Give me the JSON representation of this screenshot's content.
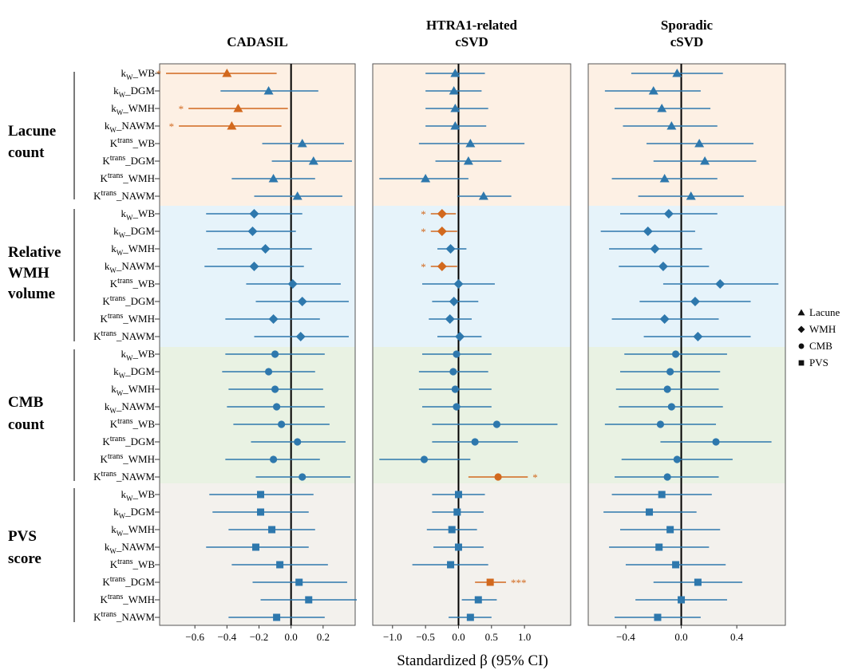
{
  "figure_label": "",
  "x_axis_title": "Standardized β (95% CI)",
  "panel_titles": [
    [
      "CADASIL"
    ],
    [
      "HTRA1-related",
      "cSVD"
    ],
    [
      "Sporadic",
      "cSVD"
    ]
  ],
  "groups": [
    {
      "name": [
        "Lacune",
        "count"
      ],
      "shape": "Lacune",
      "bg": "#fdf0e4"
    },
    {
      "name": [
        "Relative",
        "WMH",
        "volume"
      ],
      "shape": "WMH",
      "bg": "#e6f3fa"
    },
    {
      "name": [
        "CMB",
        "count"
      ],
      "shape": "CMB",
      "bg": "#e9f2e3"
    },
    {
      "name": [
        "PVS",
        "score"
      ],
      "shape": "PVS",
      "bg": "#f3f1ed"
    }
  ],
  "row_labels": [
    {
      "base": "k",
      "sub": "W",
      "sup": "",
      "suffix": "_WB"
    },
    {
      "base": "k",
      "sub": "W",
      "sup": "",
      "suffix": "_DGM"
    },
    {
      "base": "k",
      "sub": "W",
      "sup": "",
      "suffix": "_WMH"
    },
    {
      "base": "k",
      "sub": "W",
      "sup": "",
      "suffix": "_NAWM"
    },
    {
      "base": "K",
      "sub": "",
      "sup": "trans",
      "suffix": "_WB"
    },
    {
      "base": "K",
      "sub": "",
      "sup": "trans",
      "suffix": "_DGM"
    },
    {
      "base": "K",
      "sub": "",
      "sup": "trans",
      "suffix": "_WMH"
    },
    {
      "base": "K",
      "sub": "",
      "sup": "trans",
      "suffix": "_NAWM"
    }
  ],
  "legend": [
    {
      "shape": "Lacune",
      "label": "Lacune"
    },
    {
      "shape": "WMH",
      "label": "WMH"
    },
    {
      "shape": "CMB",
      "label": "CMB"
    },
    {
      "shape": "PVS",
      "label": "PVS"
    }
  ],
  "colors": {
    "normal": "#2e78ad",
    "significant": "#d2691e",
    "zero_line": "#000000",
    "panel_border": "#555555"
  },
  "chart_data": {
    "type": "forest",
    "panels": [
      {
        "title": "CADASIL",
        "xlim": [
          -0.82,
          0.4
        ],
        "ticks": [
          -0.6,
          -0.4,
          -0.2,
          0.0,
          0.2
        ],
        "tick_labels": [
          "−0.6",
          "−0.4",
          "−0.2",
          "0.0",
          "0.2"
        ],
        "rows": [
          {
            "est": -0.4,
            "lo": -0.78,
            "hi": -0.09,
            "sig": "*"
          },
          {
            "est": -0.14,
            "lo": -0.44,
            "hi": 0.17,
            "sig": ""
          },
          {
            "est": -0.33,
            "lo": -0.64,
            "hi": -0.02,
            "sig": "*"
          },
          {
            "est": -0.37,
            "lo": -0.7,
            "hi": -0.06,
            "sig": "*"
          },
          {
            "est": 0.07,
            "lo": -0.18,
            "hi": 0.33,
            "sig": ""
          },
          {
            "est": 0.14,
            "lo": -0.12,
            "hi": 0.38,
            "sig": ""
          },
          {
            "est": -0.11,
            "lo": -0.37,
            "hi": 0.15,
            "sig": ""
          },
          {
            "est": 0.04,
            "lo": -0.23,
            "hi": 0.32,
            "sig": ""
          },
          {
            "est": -0.23,
            "lo": -0.53,
            "hi": 0.07,
            "sig": ""
          },
          {
            "est": -0.24,
            "lo": -0.53,
            "hi": 0.03,
            "sig": ""
          },
          {
            "est": -0.16,
            "lo": -0.46,
            "hi": 0.13,
            "sig": ""
          },
          {
            "est": -0.23,
            "lo": -0.54,
            "hi": 0.08,
            "sig": ""
          },
          {
            "est": 0.01,
            "lo": -0.28,
            "hi": 0.31,
            "sig": ""
          },
          {
            "est": 0.07,
            "lo": -0.22,
            "hi": 0.36,
            "sig": ""
          },
          {
            "est": -0.11,
            "lo": -0.41,
            "hi": 0.18,
            "sig": ""
          },
          {
            "est": 0.06,
            "lo": -0.23,
            "hi": 0.36,
            "sig": ""
          },
          {
            "est": -0.1,
            "lo": -0.41,
            "hi": 0.21,
            "sig": ""
          },
          {
            "est": -0.14,
            "lo": -0.43,
            "hi": 0.15,
            "sig": ""
          },
          {
            "est": -0.1,
            "lo": -0.39,
            "hi": 0.2,
            "sig": ""
          },
          {
            "est": -0.09,
            "lo": -0.4,
            "hi": 0.21,
            "sig": ""
          },
          {
            "est": -0.06,
            "lo": -0.36,
            "hi": 0.24,
            "sig": ""
          },
          {
            "est": 0.04,
            "lo": -0.25,
            "hi": 0.34,
            "sig": ""
          },
          {
            "est": -0.11,
            "lo": -0.41,
            "hi": 0.18,
            "sig": ""
          },
          {
            "est": 0.07,
            "lo": -0.22,
            "hi": 0.37,
            "sig": ""
          },
          {
            "est": -0.19,
            "lo": -0.51,
            "hi": 0.14,
            "sig": ""
          },
          {
            "est": -0.19,
            "lo": -0.49,
            "hi": 0.11,
            "sig": ""
          },
          {
            "est": -0.12,
            "lo": -0.39,
            "hi": 0.15,
            "sig": ""
          },
          {
            "est": -0.22,
            "lo": -0.53,
            "hi": 0.11,
            "sig": ""
          },
          {
            "est": -0.07,
            "lo": -0.37,
            "hi": 0.23,
            "sig": ""
          },
          {
            "est": 0.05,
            "lo": -0.24,
            "hi": 0.35,
            "sig": ""
          },
          {
            "est": 0.11,
            "lo": -0.19,
            "hi": 0.41,
            "sig": ""
          },
          {
            "est": -0.09,
            "lo": -0.39,
            "hi": 0.21,
            "sig": ""
          }
        ]
      },
      {
        "title": "HTRA1-related cSVD",
        "xlim": [
          -1.3,
          1.7
        ],
        "ticks": [
          -1.0,
          -0.5,
          0.0,
          0.5,
          1.0
        ],
        "tick_labels": [
          "−1.0",
          "−0.5",
          "0.0",
          "0.5",
          "1.0"
        ],
        "rows": [
          {
            "est": -0.05,
            "lo": -0.5,
            "hi": 0.4,
            "sig": ""
          },
          {
            "est": -0.07,
            "lo": -0.5,
            "hi": 0.35,
            "sig": ""
          },
          {
            "est": -0.05,
            "lo": -0.5,
            "hi": 0.45,
            "sig": ""
          },
          {
            "est": -0.05,
            "lo": -0.5,
            "hi": 0.42,
            "sig": ""
          },
          {
            "est": 0.18,
            "lo": -0.6,
            "hi": 1.0,
            "sig": ""
          },
          {
            "est": 0.15,
            "lo": -0.35,
            "hi": 0.65,
            "sig": ""
          },
          {
            "est": -0.5,
            "lo": -1.2,
            "hi": 0.15,
            "sig": ""
          },
          {
            "est": 0.38,
            "lo": -0.02,
            "hi": 0.8,
            "sig": ""
          },
          {
            "est": -0.25,
            "lo": -0.42,
            "hi": -0.04,
            "sig": "*"
          },
          {
            "est": -0.25,
            "lo": -0.42,
            "hi": -0.02,
            "sig": "*"
          },
          {
            "est": -0.12,
            "lo": -0.32,
            "hi": 0.12,
            "sig": ""
          },
          {
            "est": -0.25,
            "lo": -0.42,
            "hi": -0.02,
            "sig": "*"
          },
          {
            "est": 0.0,
            "lo": -0.55,
            "hi": 0.55,
            "sig": ""
          },
          {
            "est": -0.07,
            "lo": -0.4,
            "hi": 0.3,
            "sig": ""
          },
          {
            "est": -0.13,
            "lo": -0.45,
            "hi": 0.2,
            "sig": ""
          },
          {
            "est": 0.02,
            "lo": -0.32,
            "hi": 0.35,
            "sig": ""
          },
          {
            "est": -0.03,
            "lo": -0.55,
            "hi": 0.5,
            "sig": ""
          },
          {
            "est": -0.08,
            "lo": -0.6,
            "hi": 0.45,
            "sig": ""
          },
          {
            "est": -0.05,
            "lo": -0.6,
            "hi": 0.5,
            "sig": ""
          },
          {
            "est": -0.03,
            "lo": -0.55,
            "hi": 0.5,
            "sig": ""
          },
          {
            "est": 0.58,
            "lo": -0.4,
            "hi": 1.5,
            "sig": ""
          },
          {
            "est": 0.25,
            "lo": -0.4,
            "hi": 0.9,
            "sig": ""
          },
          {
            "est": -0.52,
            "lo": -1.2,
            "hi": 0.18,
            "sig": ""
          },
          {
            "est": 0.6,
            "lo": 0.15,
            "hi": 1.05,
            "sig": "*"
          },
          {
            "est": 0.0,
            "lo": -0.4,
            "hi": 0.4,
            "sig": ""
          },
          {
            "est": -0.02,
            "lo": -0.4,
            "hi": 0.38,
            "sig": ""
          },
          {
            "est": -0.1,
            "lo": -0.48,
            "hi": 0.28,
            "sig": ""
          },
          {
            "est": 0.0,
            "lo": -0.38,
            "hi": 0.38,
            "sig": ""
          },
          {
            "est": -0.12,
            "lo": -0.7,
            "hi": 0.45,
            "sig": ""
          },
          {
            "est": 0.48,
            "lo": 0.25,
            "hi": 0.72,
            "sig": "***"
          },
          {
            "est": 0.3,
            "lo": 0.05,
            "hi": 0.58,
            "sig": ""
          },
          {
            "est": 0.18,
            "lo": -0.15,
            "hi": 0.5,
            "sig": ""
          }
        ]
      },
      {
        "title": "Sporadic cSVD",
        "xlim": [
          -0.67,
          0.75
        ],
        "ticks": [
          -0.4,
          0.0,
          0.4
        ],
        "tick_labels": [
          "−0.4",
          "0.0",
          "0.4"
        ],
        "rows": [
          {
            "est": -0.03,
            "lo": -0.36,
            "hi": 0.3,
            "sig": ""
          },
          {
            "est": -0.2,
            "lo": -0.55,
            "hi": 0.14,
            "sig": ""
          },
          {
            "est": -0.14,
            "lo": -0.48,
            "hi": 0.21,
            "sig": ""
          },
          {
            "est": -0.07,
            "lo": -0.42,
            "hi": 0.26,
            "sig": ""
          },
          {
            "est": 0.13,
            "lo": -0.25,
            "hi": 0.52,
            "sig": ""
          },
          {
            "est": 0.17,
            "lo": -0.2,
            "hi": 0.54,
            "sig": ""
          },
          {
            "est": -0.12,
            "lo": -0.5,
            "hi": 0.26,
            "sig": ""
          },
          {
            "est": 0.07,
            "lo": -0.31,
            "hi": 0.45,
            "sig": ""
          },
          {
            "est": -0.09,
            "lo": -0.44,
            "hi": 0.26,
            "sig": ""
          },
          {
            "est": -0.24,
            "lo": -0.58,
            "hi": 0.1,
            "sig": ""
          },
          {
            "est": -0.19,
            "lo": -0.52,
            "hi": 0.15,
            "sig": ""
          },
          {
            "est": -0.13,
            "lo": -0.45,
            "hi": 0.2,
            "sig": ""
          },
          {
            "est": 0.28,
            "lo": -0.13,
            "hi": 0.7,
            "sig": ""
          },
          {
            "est": 0.1,
            "lo": -0.3,
            "hi": 0.5,
            "sig": ""
          },
          {
            "est": -0.12,
            "lo": -0.5,
            "hi": 0.27,
            "sig": ""
          },
          {
            "est": 0.12,
            "lo": -0.27,
            "hi": 0.5,
            "sig": ""
          },
          {
            "est": -0.04,
            "lo": -0.41,
            "hi": 0.33,
            "sig": ""
          },
          {
            "est": -0.08,
            "lo": -0.44,
            "hi": 0.28,
            "sig": ""
          },
          {
            "est": -0.1,
            "lo": -0.47,
            "hi": 0.27,
            "sig": ""
          },
          {
            "est": -0.07,
            "lo": -0.45,
            "hi": 0.3,
            "sig": ""
          },
          {
            "est": -0.15,
            "lo": -0.55,
            "hi": 0.25,
            "sig": ""
          },
          {
            "est": 0.25,
            "lo": -0.15,
            "hi": 0.65,
            "sig": ""
          },
          {
            "est": -0.03,
            "lo": -0.43,
            "hi": 0.37,
            "sig": ""
          },
          {
            "est": -0.1,
            "lo": -0.48,
            "hi": 0.27,
            "sig": ""
          },
          {
            "est": -0.14,
            "lo": -0.5,
            "hi": 0.22,
            "sig": ""
          },
          {
            "est": -0.23,
            "lo": -0.56,
            "hi": 0.11,
            "sig": ""
          },
          {
            "est": -0.08,
            "lo": -0.44,
            "hi": 0.28,
            "sig": ""
          },
          {
            "est": -0.16,
            "lo": -0.52,
            "hi": 0.2,
            "sig": ""
          },
          {
            "est": -0.04,
            "lo": -0.4,
            "hi": 0.32,
            "sig": ""
          },
          {
            "est": 0.12,
            "lo": -0.2,
            "hi": 0.44,
            "sig": ""
          },
          {
            "est": 0.0,
            "lo": -0.33,
            "hi": 0.33,
            "sig": ""
          },
          {
            "est": -0.17,
            "lo": -0.48,
            "hi": 0.14,
            "sig": ""
          }
        ]
      }
    ]
  }
}
